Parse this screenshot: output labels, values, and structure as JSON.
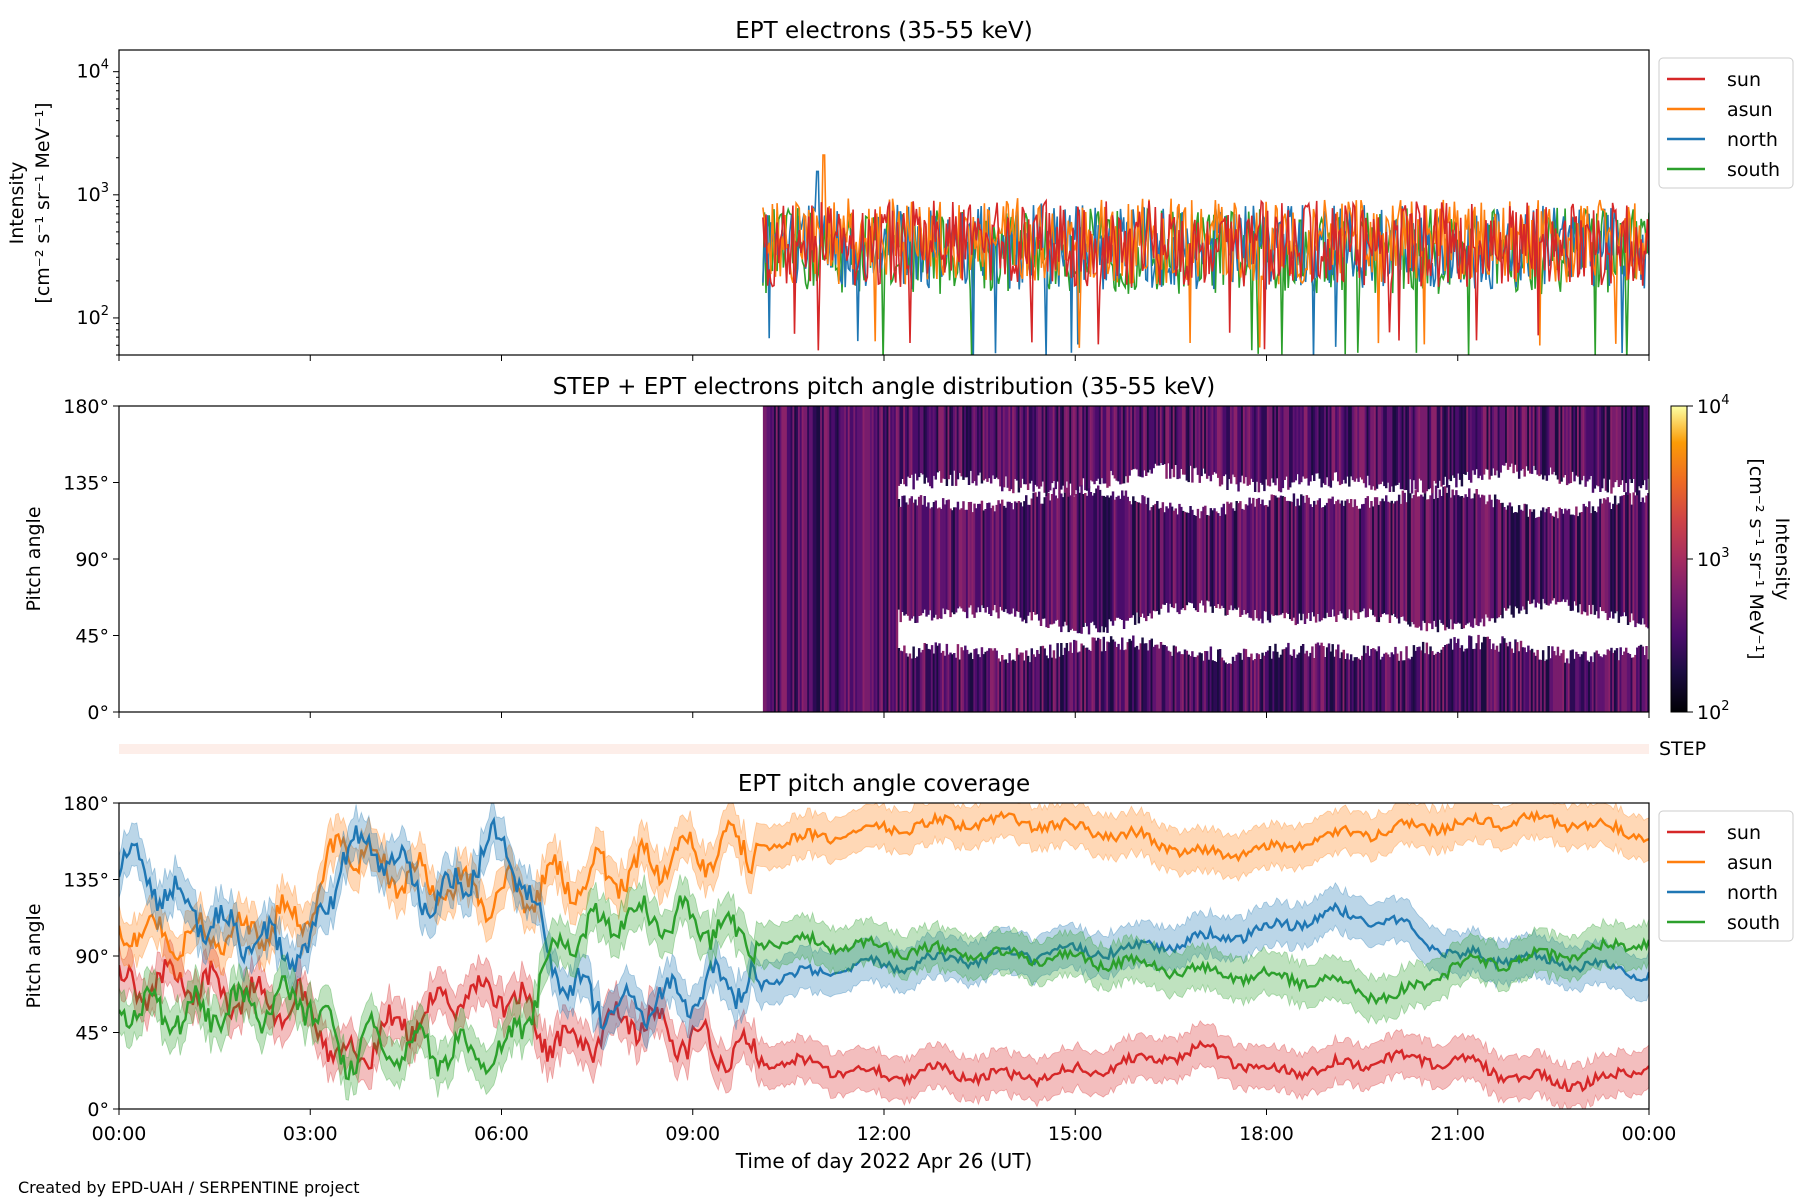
{
  "footer": "Created by EPD-UAH / SERPENTINE project",
  "xaxis": {
    "label": "Time of day 2022 Apr 26 (UT)",
    "ticks": [
      "00:00",
      "03:00",
      "06:00",
      "09:00",
      "12:00",
      "15:00",
      "18:00",
      "21:00",
      "00:00"
    ],
    "range_hours": [
      0,
      24
    ]
  },
  "colors": {
    "sun": "#d62728",
    "asun": "#ff7f0e",
    "north": "#1f77b4",
    "south": "#2ca02c"
  },
  "chart_data": [
    {
      "type": "line",
      "title": "EPT electrons (35-55 keV)",
      "ylabel": [
        "Intensity",
        "[cm⁻² s⁻¹ sr⁻¹ MeV⁻¹]"
      ],
      "yscale": "log",
      "ylim": [
        50,
        15000
      ],
      "yticks": [
        {
          "v": 100,
          "base": "10",
          "exp": "2"
        },
        {
          "v": 1000,
          "base": "10",
          "exp": "3"
        },
        {
          "v": 10000,
          "base": "10",
          "exp": "4"
        }
      ],
      "x_start_hours": 10.1,
      "x_end_hours": 24,
      "legend": [
        "sun",
        "asun",
        "north",
        "south"
      ],
      "legend_position": "outside-right-top",
      "series": [
        {
          "name": "sun",
          "typical": 400,
          "range": [
            60,
            1000
          ]
        },
        {
          "name": "asun",
          "typical": 420,
          "range": [
            50,
            2100
          ],
          "peak": {
            "x_hours": 11.05,
            "y": 2100
          }
        },
        {
          "name": "north",
          "typical": 380,
          "range": [
            55,
            1550
          ],
          "peak": {
            "x_hours": 10.95,
            "y": 1550
          }
        },
        {
          "name": "south",
          "typical": 350,
          "range": [
            50,
            1000
          ]
        }
      ]
    },
    {
      "type": "heatmap",
      "title": "STEP + EPT electrons pitch angle distribution (35-55 keV)",
      "ylabel": "Pitch angle",
      "ylim": [
        0,
        180
      ],
      "yticks": [
        "0°",
        "45°",
        "90°",
        "135°",
        "180°"
      ],
      "x_start_hours": 10.1,
      "colorbar": {
        "label": [
          "Intensity",
          "[cm⁻² s⁻¹ sr⁻¹ MeV⁻¹]"
        ],
        "scale": "log",
        "range": [
          100,
          10000
        ],
        "ticks": [
          {
            "v": 100,
            "base": "10",
            "exp": "2"
          },
          {
            "v": 1000,
            "base": "10",
            "exp": "3"
          },
          {
            "v": 10000,
            "base": "10",
            "exp": "4"
          }
        ],
        "colormap": "inferno"
      },
      "typical_intensity": 400,
      "step_strip_label": "STEP"
    },
    {
      "type": "line",
      "title": "EPT pitch angle coverage",
      "ylabel": "Pitch angle",
      "ylim": [
        0,
        180
      ],
      "yticks": [
        "0°",
        "45°",
        "90°",
        "135°",
        "180°"
      ],
      "shaded_band_width_deg": 25,
      "legend": [
        "sun",
        "asun",
        "north",
        "south"
      ],
      "legend_position": "outside-right-top",
      "series": [
        {
          "name": "sun",
          "x_hours": [
            0,
            1,
            2,
            3,
            3.5,
            4,
            5,
            6,
            7,
            8,
            9,
            10,
            11,
            12,
            13,
            14,
            15,
            16,
            17,
            18,
            19,
            20,
            21,
            22,
            23,
            24
          ],
          "values": [
            70,
            75,
            65,
            60,
            25,
            40,
            60,
            70,
            35,
            55,
            40,
            30,
            25,
            20,
            22,
            18,
            22,
            28,
            35,
            22,
            25,
            30,
            28,
            18,
            15,
            25
          ]
        },
        {
          "name": "asun",
          "x_hours": [
            0,
            1,
            2,
            3,
            3.5,
            4,
            5,
            6,
            7,
            8,
            9,
            10,
            11,
            12,
            13,
            14,
            15,
            16,
            17,
            18,
            19,
            20,
            21,
            22,
            23,
            24
          ],
          "values": [
            110,
            100,
            105,
            115,
            160,
            145,
            130,
            125,
            135,
            140,
            150,
            155,
            160,
            165,
            168,
            170,
            165,
            160,
            150,
            152,
            160,
            165,
            168,
            170,
            168,
            160
          ]
        },
        {
          "name": "north",
          "x_hours": [
            0,
            1,
            2,
            3,
            3.5,
            4,
            5,
            6,
            7,
            8,
            9,
            10,
            11,
            12,
            13,
            14,
            15,
            16,
            17,
            18,
            19,
            20,
            21,
            22,
            23,
            24
          ],
          "values": [
            150,
            120,
            100,
            90,
            150,
            155,
            120,
            160,
            70,
            60,
            70,
            75,
            80,
            85,
            88,
            90,
            92,
            95,
            100,
            105,
            115,
            110,
            90,
            88,
            85,
            80
          ]
        },
        {
          "name": "south",
          "x_hours": [
            0,
            1,
            2,
            3,
            3.5,
            4,
            5,
            6,
            7,
            8,
            9,
            10,
            11,
            12,
            13,
            14,
            15,
            16,
            17,
            18,
            19,
            20,
            21,
            22,
            23,
            24
          ],
          "values": [
            60,
            55,
            60,
            65,
            30,
            40,
            35,
            30,
            100,
            115,
            110,
            100,
            98,
            95,
            92,
            90,
            88,
            85,
            80,
            78,
            75,
            65,
            85,
            88,
            92,
            100
          ]
        }
      ]
    }
  ]
}
